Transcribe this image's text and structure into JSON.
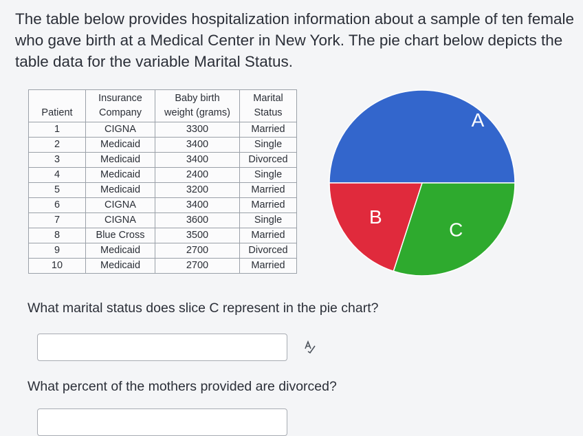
{
  "intro": {
    "lines": [
      "The table below provides hospitalization information about a sample of ten female",
      "who gave birth at a Medical Center in New York. The pie chart below depicts the",
      "table data for the variable Marital Status."
    ]
  },
  "table": {
    "headers": {
      "patient": [
        "",
        "Patient"
      ],
      "insurance": [
        "Insurance",
        "Company"
      ],
      "weight": [
        "Baby birth",
        "weight (grams)"
      ],
      "marital": [
        "Marital",
        "Status"
      ]
    },
    "rows": [
      {
        "patient": "1",
        "insurance": "CIGNA",
        "weight": "3300",
        "marital": "Married"
      },
      {
        "patient": "2",
        "insurance": "Medicaid",
        "weight": "3400",
        "marital": "Single"
      },
      {
        "patient": "3",
        "insurance": "Medicaid",
        "weight": "3400",
        "marital": "Divorced"
      },
      {
        "patient": "4",
        "insurance": "Medicaid",
        "weight": "2400",
        "marital": "Single"
      },
      {
        "patient": "5",
        "insurance": "Medicaid",
        "weight": "3200",
        "marital": "Married"
      },
      {
        "patient": "6",
        "insurance": "CIGNA",
        "weight": "3400",
        "marital": "Married"
      },
      {
        "patient": "7",
        "insurance": "CIGNA",
        "weight": "3600",
        "marital": "Single"
      },
      {
        "patient": "8",
        "insurance": "Blue Cross",
        "weight": "3500",
        "marital": "Married"
      },
      {
        "patient": "9",
        "insurance": "Medicaid",
        "weight": "2700",
        "marital": "Divorced"
      },
      {
        "patient": "10",
        "insurance": "Medicaid",
        "weight": "2700",
        "marital": "Married"
      }
    ]
  },
  "chart_data": {
    "type": "pie",
    "slices": [
      {
        "label": "A",
        "value": 5,
        "color": "#3366cc"
      },
      {
        "label": "C",
        "value": 3,
        "color": "#2eaa2e"
      },
      {
        "label": "B",
        "value": 2,
        "color": "#e02a3c"
      }
    ]
  },
  "questions": {
    "q1": "What marital status does slice C represent in the pie chart?",
    "q1_answer": "",
    "q2": "What percent of the mothers provided are divorced?",
    "q2_answer": ""
  },
  "icons": {
    "spellcheck": "spellcheck-icon"
  }
}
